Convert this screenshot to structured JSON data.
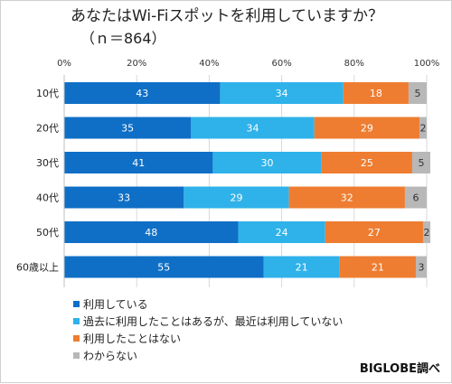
{
  "chart_data": {
    "type": "bar",
    "orientation": "horizontal",
    "stacked": true,
    "title": "あなたはWi-Fiスポットを利用していますか？",
    "subtitle": "（ｎ＝864）",
    "categories": [
      "10代",
      "20代",
      "30代",
      "40代",
      "50代",
      "60歳以上"
    ],
    "series": [
      {
        "name": "利用している",
        "color": "#0f6fc6",
        "values": [
          43,
          35,
          41,
          33,
          48,
          55
        ]
      },
      {
        "name": "過去に利用したことはあるが、最近は利用していない",
        "color": "#2fb2ea",
        "values": [
          34,
          34,
          30,
          29,
          24,
          21
        ]
      },
      {
        "name": "利用したことはない",
        "color": "#ee7d31",
        "values": [
          18,
          29,
          25,
          32,
          27,
          21
        ]
      },
      {
        "name": "わからない",
        "color": "#b8b8b8",
        "values": [
          5,
          2,
          5,
          6,
          2,
          3
        ]
      }
    ],
    "xlim": [
      0,
      100
    ],
    "x_ticks": [
      "0%",
      "20%",
      "40%",
      "60%",
      "80%",
      "100%"
    ],
    "grid": true,
    "legend_position": "bottom-left"
  },
  "source_label": "BIGLOBE調べ"
}
